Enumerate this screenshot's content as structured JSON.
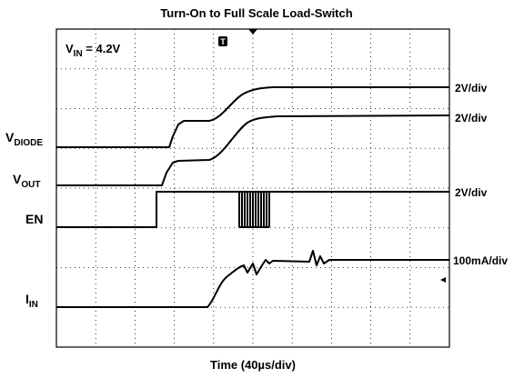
{
  "title": "Turn-On to Full Scale Load-Switch",
  "annotation": {
    "main": "V",
    "sub": "IN",
    "rest": " = 4.2V"
  },
  "trace_labels": [
    {
      "main": "V",
      "sub": "DIODE"
    },
    {
      "main": "V",
      "sub": "OUT"
    },
    {
      "main": "EN",
      "sub": ""
    },
    {
      "main": "I",
      "sub": "IN"
    }
  ],
  "scale_labels": [
    "2V/div",
    "2V/div",
    "2V/div",
    "100mA/div"
  ],
  "x_label": "Time (40µs/div)",
  "trigger": "T"
}
